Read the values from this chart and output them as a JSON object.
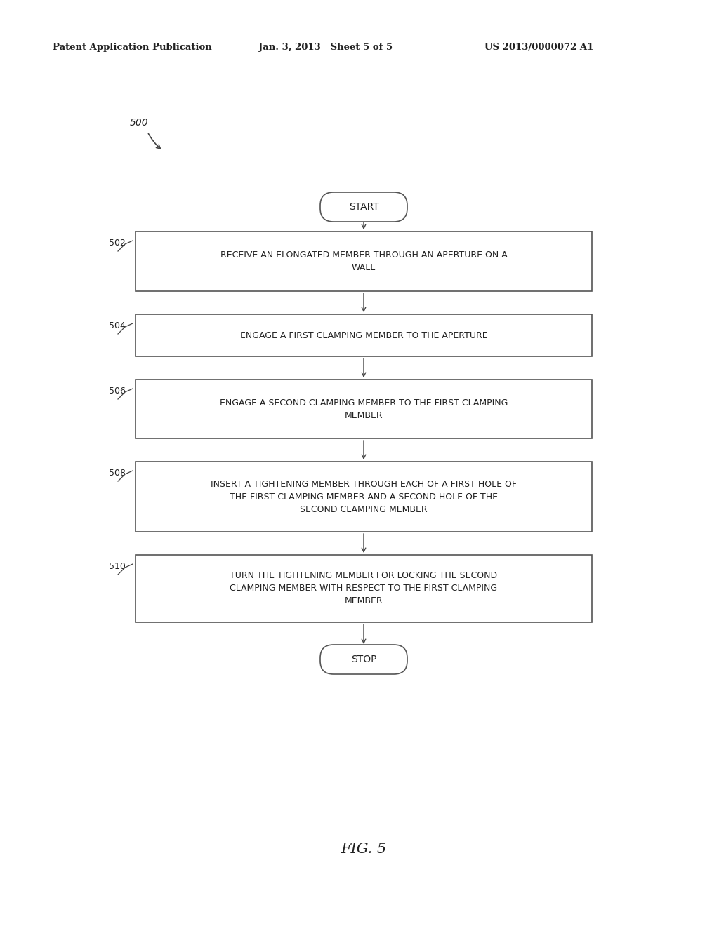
{
  "bg_color": "#ffffff",
  "header_left": "Patent Application Publication",
  "header_mid": "Jan. 3, 2013   Sheet 5 of 5",
  "header_right": "US 2013/0000072 A1",
  "fig_label": "FIG. 5",
  "diagram_label": "500",
  "start_label": "START",
  "stop_label": "STOP",
  "steps": [
    {
      "id": "502",
      "text": "RECEIVE AN ELONGATED MEMBER THROUGH AN APERTURE ON A\nWALL"
    },
    {
      "id": "504",
      "text": "ENGAGE A FIRST CLAMPING MEMBER TO THE APERTURE"
    },
    {
      "id": "506",
      "text": "ENGAGE A SECOND CLAMPING MEMBER TO THE FIRST CLAMPING\nMEMBER"
    },
    {
      "id": "508",
      "text": "INSERT A TIGHTENING MEMBER THROUGH EACH OF A FIRST HOLE OF\nTHE FIRST CLAMPING MEMBER AND A SECOND HOLE OF THE\nSECOND CLAMPING MEMBER"
    },
    {
      "id": "510",
      "text": "TURN THE TIGHTENING MEMBER FOR LOCKING THE SECOND\nCLAMPING MEMBER WITH RESPECT TO THE FIRST CLAMPING\nMEMBER"
    }
  ],
  "box_edge_color": "#555555",
  "text_color": "#222222",
  "arrow_color": "#444444",
  "line_width": 1.2,
  "font_size_header": 9.5,
  "font_size_step": 9.0,
  "font_size_terminal": 10,
  "font_size_label": 9.0,
  "font_size_fig": 15
}
